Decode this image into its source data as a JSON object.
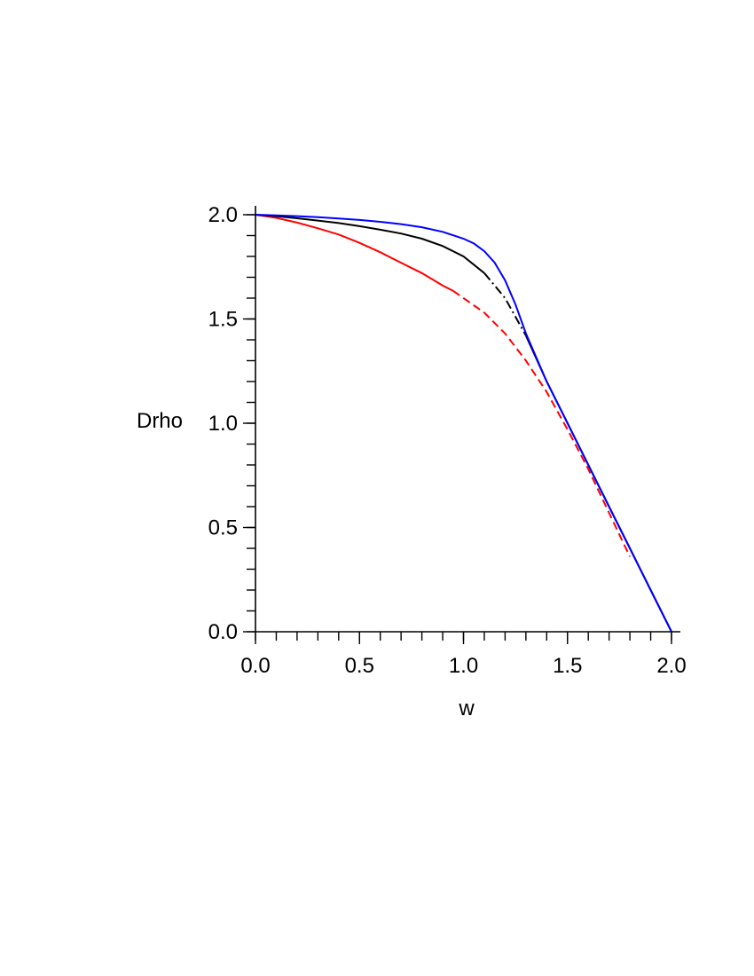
{
  "chart_data": {
    "type": "line",
    "title": "",
    "xlabel": "w",
    "ylabel": "Drho",
    "xlim": [
      0,
      2
    ],
    "ylim": [
      0,
      2
    ],
    "xticks": [
      {
        "value": 0.0,
        "label": "0.0"
      },
      {
        "value": 0.5,
        "label": "0.5"
      },
      {
        "value": 1.0,
        "label": "1.0"
      },
      {
        "value": 1.5,
        "label": "1.5"
      },
      {
        "value": 2.0,
        "label": "2.0"
      }
    ],
    "yticks": [
      {
        "value": 0.0,
        "label": "0.0"
      },
      {
        "value": 0.5,
        "label": "0.5"
      },
      {
        "value": 1.0,
        "label": "1.0"
      },
      {
        "value": 1.5,
        "label": "1.5"
      },
      {
        "value": 2.0,
        "label": "2.0"
      }
    ],
    "minor_tick_step": 0.1,
    "grid": false,
    "series": [
      {
        "color": "#ff0000",
        "segments": [
          {
            "style": "solid",
            "x": [
              0.0,
              0.1,
              0.2,
              0.3,
              0.4,
              0.5,
              0.6,
              0.7,
              0.8,
              0.9,
              0.95
            ],
            "y": [
              2.0,
              1.985,
              1.962,
              1.935,
              1.905,
              1.865,
              1.82,
              1.77,
              1.72,
              1.66,
              1.635
            ]
          },
          {
            "style": "dashed",
            "x": [
              0.95,
              1.0,
              1.1,
              1.2,
              1.3,
              1.4,
              1.5,
              1.6,
              1.7,
              1.8
            ],
            "y": [
              1.635,
              1.6,
              1.53,
              1.43,
              1.3,
              1.15,
              0.97,
              0.78,
              0.57,
              0.36
            ]
          }
        ]
      },
      {
        "color": "#000000",
        "segments": [
          {
            "style": "solid",
            "x": [
              0.0,
              0.1,
              0.2,
              0.3,
              0.4,
              0.5,
              0.6,
              0.7,
              0.8,
              0.9,
              1.0,
              1.1
            ],
            "y": [
              2.0,
              1.993,
              1.983,
              1.972,
              1.96,
              1.945,
              1.928,
              1.91,
              1.885,
              1.85,
              1.8,
              1.72
            ]
          },
          {
            "style": "dashdot",
            "x": [
              1.1,
              1.2,
              1.3
            ],
            "y": [
              1.72,
              1.6,
              1.42
            ]
          },
          {
            "style": "solid",
            "x": [
              1.3,
              1.4,
              1.5,
              1.6,
              1.7,
              1.8,
              1.9,
              2.0
            ],
            "y": [
              1.42,
              1.2,
              1.0,
              0.8,
              0.6,
              0.4,
              0.2,
              0.0
            ]
          }
        ]
      },
      {
        "color": "#0000ff",
        "segments": [
          {
            "style": "solid",
            "x": [
              0.0,
              0.1,
              0.2,
              0.3,
              0.4,
              0.5,
              0.6,
              0.7,
              0.8,
              0.9,
              1.0,
              1.05,
              1.1,
              1.15,
              1.2,
              1.25,
              1.3,
              1.4,
              1.5,
              1.6,
              1.7,
              1.8,
              1.9,
              2.0
            ],
            "y": [
              2.0,
              1.997,
              1.993,
              1.988,
              1.982,
              1.975,
              1.966,
              1.955,
              1.94,
              1.918,
              1.885,
              1.862,
              1.825,
              1.77,
              1.685,
              1.57,
              1.43,
              1.2,
              1.0,
              0.8,
              0.6,
              0.4,
              0.2,
              0.0
            ]
          }
        ]
      }
    ]
  }
}
